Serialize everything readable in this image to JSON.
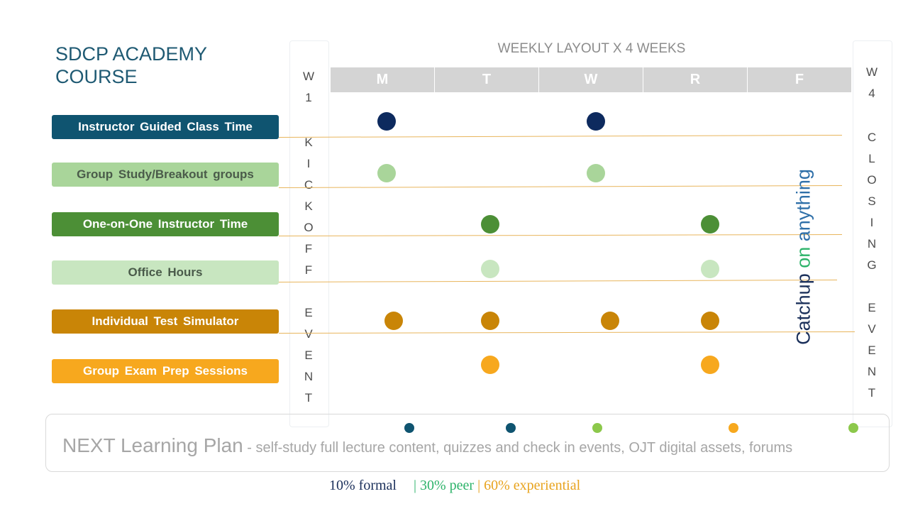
{
  "title": {
    "line1": "SDCP ACADEMY",
    "line2": "COURSE"
  },
  "header": {
    "weekly_layout": "WEEKLY LAYOUT X 4 WEEKS"
  },
  "days": [
    "M",
    "T",
    "W",
    "R",
    "F"
  ],
  "kickoff": {
    "week": [
      "W",
      "1"
    ],
    "letters": [
      "K",
      "I",
      "C",
      "K",
      "O",
      "F",
      "F",
      "",
      "E",
      "V",
      "E",
      "N",
      "T"
    ]
  },
  "closing": {
    "week": [
      "W",
      "4"
    ],
    "letters": [
      "C",
      "L",
      "O",
      "S",
      "I",
      "N",
      "G",
      "",
      "E",
      "V",
      "E",
      "N",
      "T"
    ]
  },
  "lanes": [
    {
      "label": "Instructor Guided Class Time",
      "color": "#0f5470",
      "dot_color": "#0d2a5e",
      "days": [
        "M",
        "W"
      ]
    },
    {
      "label": "Group Study/Breakout groups",
      "color": "#a9d59a",
      "dot_color": "#a9d59a",
      "days": [
        "M",
        "W"
      ]
    },
    {
      "label": "One-on-One Instructor Time",
      "color": "#4c8f36",
      "dot_color": "#4c8f36",
      "days": [
        "T",
        "R"
      ]
    },
    {
      "label": "Office Hours",
      "color": "#c8e6c0",
      "dot_color": "#c8e6c0",
      "days": [
        "T",
        "R"
      ]
    },
    {
      "label": "Individual Test Simulator",
      "color": "#c98507",
      "dot_color": "#c98507",
      "days": [
        "M",
        "T",
        "W",
        "R"
      ]
    },
    {
      "label": "Group Exam Prep Sessions",
      "color": "#f7a81e",
      "dot_color": "#f7a81e",
      "days": [
        "T",
        "R"
      ]
    }
  ],
  "catchup": {
    "part1": "Catchup ",
    "part2": "on",
    "part3": " anything"
  },
  "next_plan": {
    "main": "NEXT Learning Plan",
    "rest": " - self-study full lecture content, quizzes and check in events, OJT digital assets, forums",
    "dot_colors": [
      "#0f5470",
      "#0f5470",
      "#8cc84b",
      "#f7a81e",
      "#8cc84b"
    ]
  },
  "legend": [
    {
      "text": "10% formal",
      "color": "#1a2f5a"
    },
    {
      "text": "| 30% peer",
      "color": "#2db36a"
    },
    {
      "text": "|",
      "color": "#e8a31d"
    },
    {
      "text": "60% experiential",
      "color": "#e8a31d"
    }
  ]
}
